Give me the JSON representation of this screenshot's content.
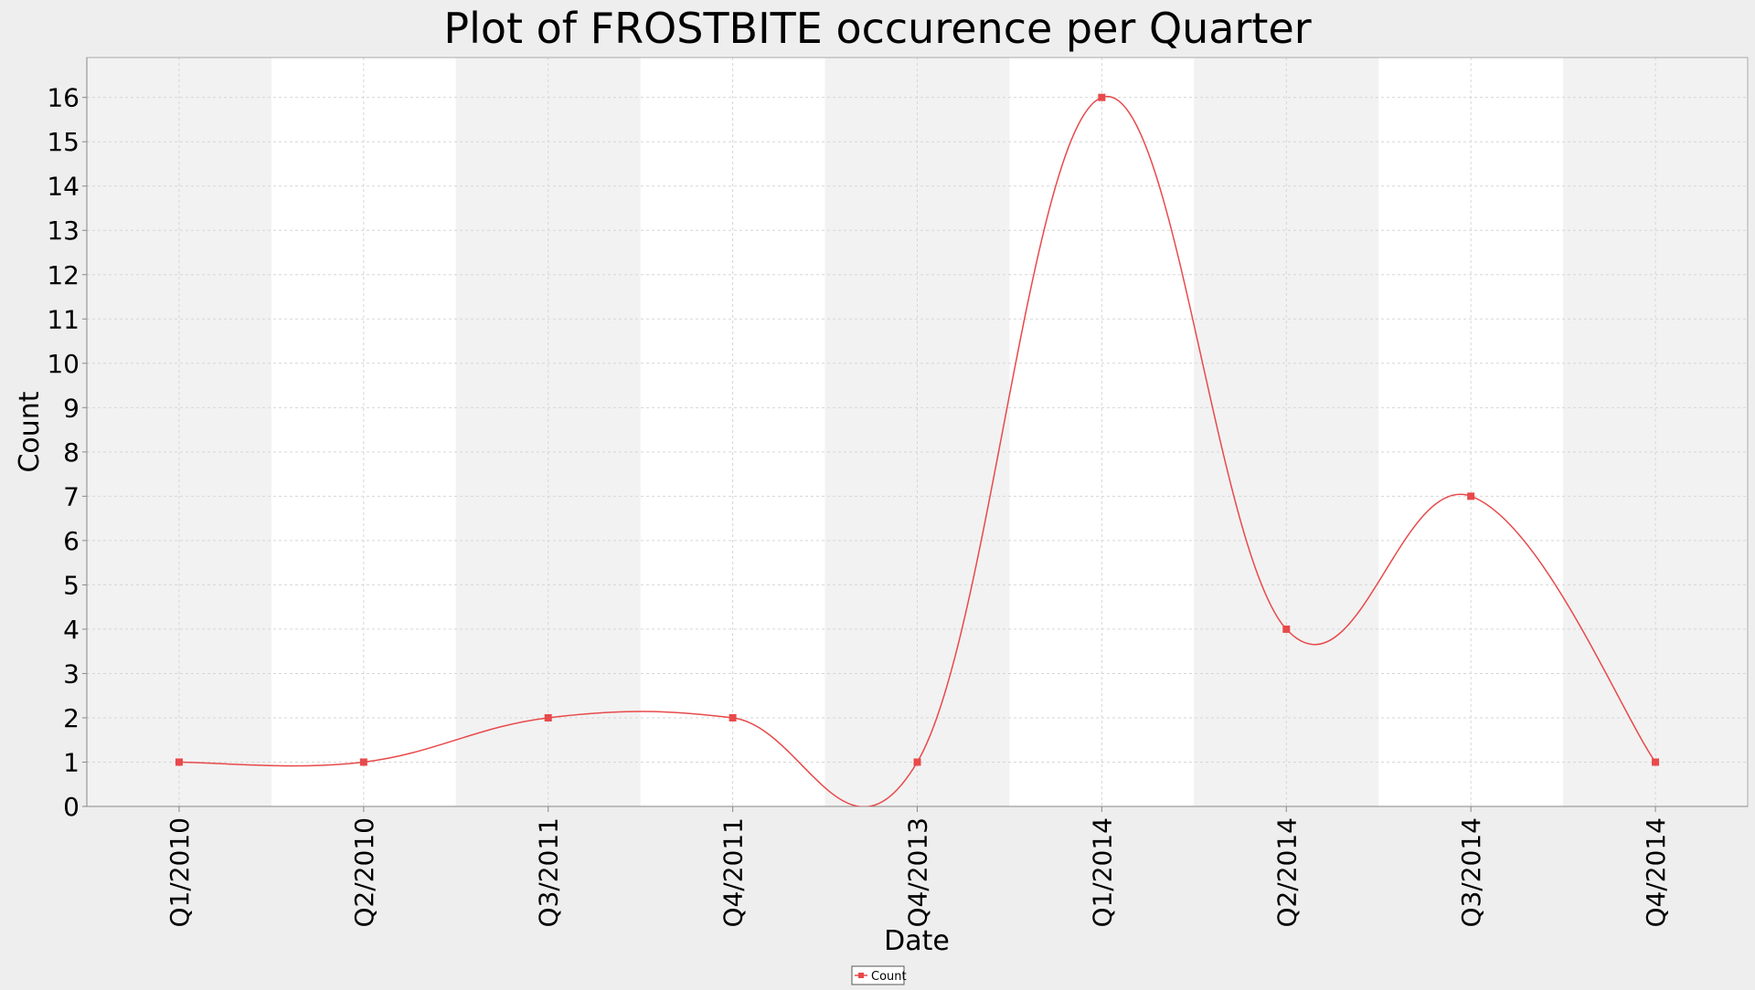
{
  "chart_data": {
    "type": "line",
    "title": "Plot of FROSTBITE occurence per Quarter",
    "xlabel": "Date",
    "ylabel": "Count",
    "ylim": [
      0,
      16.9
    ],
    "y_ticks": [
      0,
      1,
      2,
      3,
      4,
      5,
      6,
      7,
      8,
      9,
      10,
      11,
      12,
      13,
      14,
      15,
      16
    ],
    "categories": [
      "Q1/2010",
      "Q2/2010",
      "Q3/2011",
      "Q4/2011",
      "Q4/2013",
      "Q1/2014",
      "Q2/2014",
      "Q3/2014",
      "Q4/2014"
    ],
    "series": [
      {
        "name": "Count",
        "values": [
          1,
          1,
          2,
          2,
          1,
          16,
          4,
          7,
          1
        ],
        "color": "#e8494a"
      }
    ],
    "curve": "smoothed",
    "grid": true,
    "alternating_bands": true,
    "legend_position": "bottom-center",
    "colors": {
      "page_background": "#eeeeee",
      "plot_band_light": "#ffffff",
      "plot_band_shaded": "#f2f2f2",
      "gridline": "#d6d6d6",
      "axis": "#888888",
      "text": "#000000"
    }
  }
}
